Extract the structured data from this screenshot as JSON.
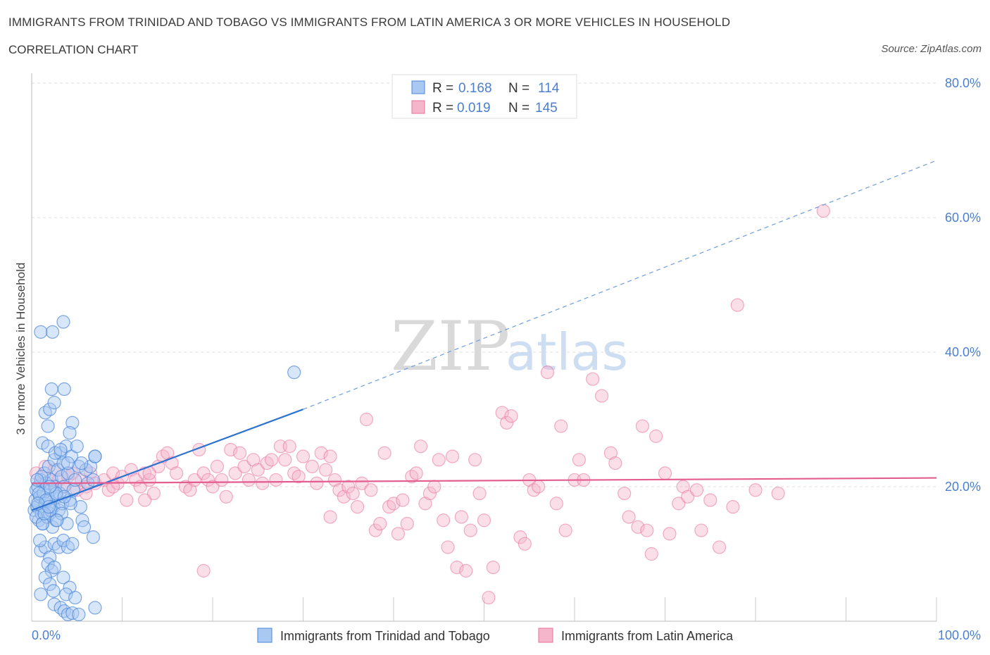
{
  "title": "IMMIGRANTS FROM TRINIDAD AND TOBAGO VS IMMIGRANTS FROM LATIN AMERICA 3 OR MORE VEHICLES IN HOUSEHOLD",
  "subtitle": "CORRELATION CHART",
  "source": "Source: ZipAtlas.com",
  "watermark": {
    "zip": "ZIP",
    "atlas": "atlas"
  },
  "colors": {
    "blue": "#4a86d8",
    "blue_fill": "#a9c8f2",
    "pink": "#e8709a",
    "pink_fill": "#f5b6cc",
    "tick": "#4a7fd0",
    "grid": "#dddddd"
  },
  "legend_top": {
    "row1": {
      "r_label": "R =",
      "r_value": "0.168",
      "n_label": "N =",
      "n_value": "114"
    },
    "row2": {
      "r_label": "R =",
      "r_value": "0.019",
      "n_label": "N =",
      "n_value": "145"
    }
  },
  "legend_bottom": [
    "Immigrants from Trinidad and Tobago",
    "Immigrants from Latin America"
  ],
  "chart_data": {
    "type": "scatter",
    "xlabel": "",
    "ylabel": "3 or more Vehicles in Household",
    "xlim": [
      0,
      100
    ],
    "ylim": [
      0,
      80
    ],
    "x_tick_labels": [
      "0.0%",
      "100.0%"
    ],
    "y_ticks": [
      20,
      40,
      60,
      80
    ],
    "y_tick_labels": [
      "20.0%",
      "40.0%",
      "60.0%",
      "80.0%"
    ],
    "series": [
      {
        "name": "Immigrants from Trinidad and Tobago",
        "R": 0.168,
        "N": 114,
        "trend": {
          "x0": 0,
          "y0": 16.5,
          "x1": 30,
          "y1": 31.5,
          "dash_x1": 100,
          "dash_y1": 68.5
        },
        "points": [
          [
            0.3,
            16.5
          ],
          [
            0.4,
            18
          ],
          [
            0.5,
            19.5
          ],
          [
            0.6,
            17
          ],
          [
            0.7,
            20
          ],
          [
            0.8,
            15
          ],
          [
            0.9,
            18.5
          ],
          [
            1.0,
            21
          ],
          [
            1.1,
            16
          ],
          [
            1.2,
            14.5
          ],
          [
            1.3,
            19
          ],
          [
            1.4,
            22
          ],
          [
            1.5,
            17.5
          ],
          [
            1.6,
            20.5
          ],
          [
            1.7,
            15.5
          ],
          [
            1.8,
            18
          ],
          [
            1.9,
            23
          ],
          [
            2.0,
            16
          ],
          [
            2.1,
            19.5
          ],
          [
            2.2,
            21
          ],
          [
            2.3,
            14
          ],
          [
            2.4,
            17
          ],
          [
            2.5,
            24
          ],
          [
            2.6,
            20
          ],
          [
            2.7,
            15
          ],
          [
            2.8,
            18.5
          ],
          [
            2.9,
            22.5
          ],
          [
            3.0,
            16.5
          ],
          [
            3.1,
            19
          ],
          [
            3.2,
            25
          ],
          [
            3.3,
            21.5
          ],
          [
            3.4,
            17.5
          ],
          [
            3.5,
            23.5
          ],
          [
            3.6,
            20
          ],
          [
            3.8,
            26
          ],
          [
            4.0,
            22
          ],
          [
            4.2,
            18
          ],
          [
            4.4,
            24.5
          ],
          [
            4.6,
            19.5
          ],
          [
            4.8,
            21
          ],
          [
            5.0,
            26
          ],
          [
            5.2,
            23
          ],
          [
            5.4,
            17
          ],
          [
            5.6,
            15
          ],
          [
            5.8,
            14
          ],
          [
            6.0,
            22.5
          ],
          [
            6.2,
            20.5
          ],
          [
            6.5,
            23
          ],
          [
            6.8,
            21
          ],
          [
            7.0,
            24.5
          ],
          [
            1.0,
            43
          ],
          [
            2.3,
            43
          ],
          [
            3.5,
            44.5
          ],
          [
            2.2,
            34.5
          ],
          [
            3.6,
            34.5
          ],
          [
            1.5,
            31
          ],
          [
            2.0,
            31.5
          ],
          [
            1.8,
            29
          ],
          [
            2.5,
            32.5
          ],
          [
            4.5,
            29.5
          ],
          [
            4.2,
            28
          ],
          [
            1.2,
            26.5
          ],
          [
            1.8,
            26
          ],
          [
            2.6,
            25
          ],
          [
            3.2,
            25.5
          ],
          [
            4.0,
            23.5
          ],
          [
            5.5,
            23.5
          ],
          [
            7.0,
            24.5
          ],
          [
            6.8,
            12.5
          ],
          [
            1.0,
            10.5
          ],
          [
            1.5,
            11
          ],
          [
            2.0,
            9.5
          ],
          [
            2.5,
            11.5
          ],
          [
            3.0,
            11
          ],
          [
            3.5,
            12
          ],
          [
            4.0,
            11
          ],
          [
            4.5,
            11.5
          ],
          [
            1.8,
            8.5
          ],
          [
            2.2,
            7.5
          ],
          [
            2.5,
            8
          ],
          [
            3.5,
            6.5
          ],
          [
            4.2,
            5
          ],
          [
            1.5,
            6.5
          ],
          [
            2.0,
            5.5
          ],
          [
            2.4,
            4.5
          ],
          [
            1.0,
            4
          ],
          [
            3.8,
            4
          ],
          [
            4.8,
            3.5
          ],
          [
            2.5,
            2.5
          ],
          [
            3.2,
            2
          ],
          [
            3.6,
            1.5
          ],
          [
            4.0,
            1
          ],
          [
            4.5,
            1.2
          ],
          [
            5.2,
            1
          ],
          [
            7.0,
            2
          ],
          [
            0.8,
            19
          ],
          [
            0.5,
            15.5
          ],
          [
            1.6,
            18
          ],
          [
            2.1,
            16.5
          ],
          [
            2.7,
            19
          ],
          [
            3.3,
            16
          ],
          [
            3.9,
            14.5
          ],
          [
            4.3,
            17.5
          ],
          [
            1.2,
            14.5
          ],
          [
            0.9,
            12
          ],
          [
            29.0,
            37
          ],
          [
            1.4,
            16
          ],
          [
            2.8,
            15
          ],
          [
            3.6,
            18.5
          ],
          [
            1.1,
            21.5
          ],
          [
            0.7,
            17.5
          ],
          [
            2.0,
            20
          ],
          [
            0.6,
            21
          ],
          [
            1.9,
            17
          ]
        ]
      },
      {
        "name": "Immigrants from Latin America",
        "R": 0.019,
        "N": 145,
        "trend": {
          "x0": 0,
          "y0": 20.5,
          "x1": 100,
          "y1": 21.3
        },
        "points": [
          [
            0.5,
            22
          ],
          [
            1.0,
            21
          ],
          [
            1.5,
            23
          ],
          [
            2.0,
            20.5
          ],
          [
            2.5,
            22.5
          ],
          [
            3.0,
            21
          ],
          [
            3.5,
            20
          ],
          [
            4.0,
            21.5
          ],
          [
            4.5,
            22
          ],
          [
            5.0,
            19.5
          ],
          [
            5.5,
            21
          ],
          [
            6.0,
            20
          ],
          [
            6.5,
            22
          ],
          [
            7.0,
            20.5
          ],
          [
            8.0,
            21
          ],
          [
            8.5,
            19.5
          ],
          [
            9.0,
            22
          ],
          [
            9.5,
            20.5
          ],
          [
            10.0,
            21.5
          ],
          [
            10.5,
            18
          ],
          [
            11.0,
            22.5
          ],
          [
            11.5,
            21
          ],
          [
            12.0,
            20
          ],
          [
            12.5,
            22
          ],
          [
            13.0,
            21
          ],
          [
            13.5,
            19
          ],
          [
            14.0,
            23
          ],
          [
            14.5,
            24.5
          ],
          [
            15.0,
            25
          ],
          [
            15.5,
            23.5
          ],
          [
            16.0,
            22
          ],
          [
            17.0,
            20
          ],
          [
            17.5,
            19.5
          ],
          [
            18.0,
            21
          ],
          [
            18.5,
            25.5
          ],
          [
            19.0,
            22
          ],
          [
            19.5,
            21
          ],
          [
            20.0,
            20
          ],
          [
            20.5,
            23
          ],
          [
            21.0,
            21
          ],
          [
            21.5,
            18.5
          ],
          [
            22.0,
            25.5
          ],
          [
            22.5,
            22
          ],
          [
            23.0,
            25
          ],
          [
            23.5,
            23
          ],
          [
            24.0,
            21
          ],
          [
            24.5,
            24
          ],
          [
            25.0,
            22.5
          ],
          [
            25.5,
            20.5
          ],
          [
            26.0,
            23.5
          ],
          [
            26.5,
            24
          ],
          [
            27.0,
            21
          ],
          [
            27.5,
            26
          ],
          [
            28.0,
            24
          ],
          [
            28.5,
            26
          ],
          [
            29.0,
            22
          ],
          [
            29.5,
            21.5
          ],
          [
            30.0,
            24.5
          ],
          [
            31.0,
            23
          ],
          [
            31.5,
            20.5
          ],
          [
            32.0,
            25
          ],
          [
            32.5,
            22.5
          ],
          [
            33.0,
            24.5
          ],
          [
            33.5,
            21
          ],
          [
            34.0,
            19.5
          ],
          [
            34.5,
            18.5
          ],
          [
            35.0,
            20
          ],
          [
            35.5,
            19
          ],
          [
            36.0,
            17
          ],
          [
            36.5,
            20.5
          ],
          [
            37.0,
            30
          ],
          [
            37.5,
            19.5
          ],
          [
            38.0,
            13.5
          ],
          [
            38.5,
            14.5
          ],
          [
            39.0,
            25
          ],
          [
            39.5,
            17
          ],
          [
            40.0,
            17.5
          ],
          [
            40.5,
            13
          ],
          [
            41.0,
            18
          ],
          [
            41.5,
            14.5
          ],
          [
            42.0,
            21.5
          ],
          [
            42.5,
            22
          ],
          [
            43.0,
            26
          ],
          [
            43.5,
            17.5
          ],
          [
            44.0,
            19
          ],
          [
            44.5,
            20
          ],
          [
            45.0,
            24
          ],
          [
            45.5,
            15
          ],
          [
            46.0,
            11
          ],
          [
            46.5,
            24.5
          ],
          [
            47.0,
            8
          ],
          [
            47.5,
            15.5
          ],
          [
            48.0,
            7.5
          ],
          [
            48.5,
            13.5
          ],
          [
            49.0,
            24
          ],
          [
            49.5,
            19
          ],
          [
            50.0,
            15
          ],
          [
            50.5,
            3.5
          ],
          [
            51.0,
            8
          ],
          [
            52.0,
            31
          ],
          [
            52.5,
            29.5
          ],
          [
            53.0,
            30.5
          ],
          [
            54.0,
            12.5
          ],
          [
            54.5,
            11.5
          ],
          [
            55.0,
            21
          ],
          [
            55.5,
            19.5
          ],
          [
            56.0,
            20
          ],
          [
            57.0,
            37
          ],
          [
            58.0,
            17.5
          ],
          [
            58.5,
            29
          ],
          [
            59.0,
            13.5
          ],
          [
            60.0,
            21
          ],
          [
            60.5,
            24
          ],
          [
            61.0,
            21
          ],
          [
            62.0,
            36
          ],
          [
            63.0,
            33.5
          ],
          [
            64.0,
            25
          ],
          [
            64.5,
            23.5
          ],
          [
            65.5,
            19
          ],
          [
            66.0,
            15.5
          ],
          [
            67.0,
            14
          ],
          [
            67.5,
            29
          ],
          [
            68.0,
            13.5
          ],
          [
            68.5,
            10
          ],
          [
            69.0,
            27.5
          ],
          [
            70.0,
            22
          ],
          [
            70.5,
            13
          ],
          [
            71.5,
            17.5
          ],
          [
            72.0,
            20
          ],
          [
            72.5,
            18.5
          ],
          [
            73.5,
            19.5
          ],
          [
            74.0,
            13.5
          ],
          [
            75.0,
            18
          ],
          [
            76.0,
            11
          ],
          [
            77.5,
            17
          ],
          [
            78.0,
            47
          ],
          [
            80.0,
            19.5
          ],
          [
            82.5,
            19
          ],
          [
            87.5,
            61
          ],
          [
            12.5,
            18
          ],
          [
            13.0,
            22
          ],
          [
            19.0,
            7.5
          ],
          [
            33.0,
            15.5
          ],
          [
            9.0,
            20
          ],
          [
            6.0,
            19
          ]
        ]
      }
    ]
  }
}
